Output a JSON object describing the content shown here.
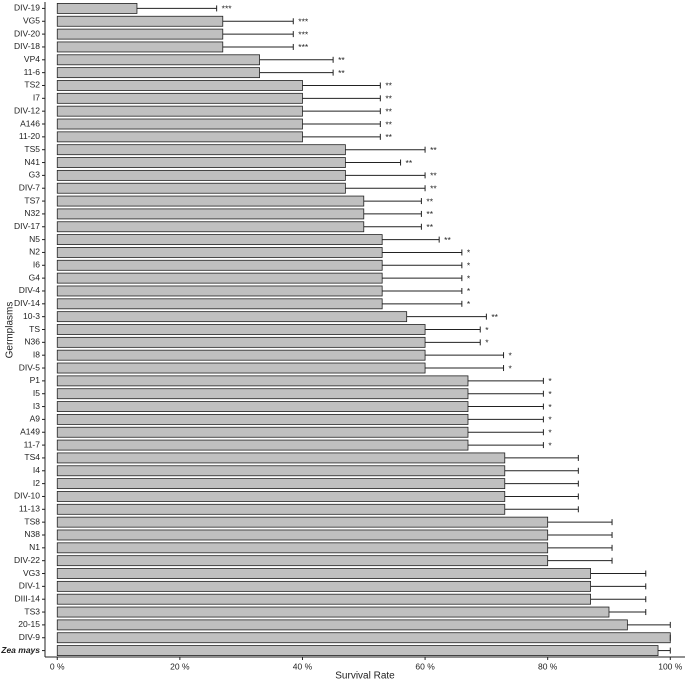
{
  "chart_data": {
    "type": "bar",
    "orientation": "horizontal",
    "x_label": "Survival Rate",
    "y_label": "Germplasms",
    "categories": [
      "DIV-19",
      "VG5",
      "DIV-20",
      "DIV-18",
      "VP4",
      "11-6",
      "TS2",
      "I7",
      "DIV-12",
      "A146",
      "11-20",
      "TS5",
      "N41",
      "G3",
      "DIV-7",
      "TS7",
      "N32",
      "DIV-17",
      "N5",
      "N2",
      "I6",
      "G4",
      "DIV-4",
      "DIV-14",
      "10-3",
      "TS",
      "N36",
      "I8",
      "DIV-5",
      "P1",
      "I5",
      "I3",
      "A9",
      "A149",
      "11-7",
      "TS4",
      "I4",
      "I2",
      "DIV-10",
      "11-13",
      "TS8",
      "N38",
      "N1",
      "DIV-22",
      "VG3",
      "DIV-1",
      "DIII-14",
      "TS3",
      "20-15",
      "DIV-9",
      "Zea mays"
    ],
    "values": [
      13,
      27,
      27,
      27,
      33,
      33,
      40,
      40,
      40,
      40,
      40,
      47,
      47,
      47,
      47,
      50,
      50,
      50,
      53,
      53,
      53,
      53,
      53,
      53,
      57,
      60,
      60,
      60,
      60,
      67,
      67,
      67,
      67,
      67,
      67,
      73,
      73,
      73,
      73,
      73,
      80,
      80,
      80,
      80,
      87,
      87,
      87,
      90,
      93,
      100,
      98
    ],
    "errors": [
      13,
      11.5,
      11.5,
      11.5,
      12,
      12,
      12.7,
      12.7,
      12.7,
      12.7,
      12.7,
      13,
      9,
      13,
      13,
      9.4,
      9.4,
      9.4,
      9.3,
      13,
      13,
      13,
      13,
      13,
      13,
      9,
      9,
      12.8,
      12.8,
      12.3,
      12.3,
      12.3,
      12.3,
      12.3,
      12.3,
      12,
      12,
      12,
      12,
      12,
      10.5,
      10.5,
      10.5,
      10.5,
      9,
      9,
      9,
      6,
      7,
      0,
      2
    ],
    "significance": [
      "***",
      "***",
      "***",
      "***",
      "**",
      "**",
      "**",
      "**",
      "**",
      "**",
      "**",
      "**",
      "**",
      "**",
      "**",
      "**",
      "**",
      "**",
      "**",
      "*",
      "*",
      "*",
      "*",
      "*",
      "**",
      "*",
      "*",
      "*",
      "*",
      "*",
      "*",
      "*",
      "*",
      "*",
      "*",
      null,
      null,
      null,
      null,
      null,
      null,
      null,
      null,
      null,
      null,
      null,
      null,
      null,
      null,
      null,
      null
    ],
    "color": "#c0c0c0",
    "xlim": [
      -2,
      102.4
    ],
    "xticks": [
      {
        "value": 0,
        "label": "0 %"
      },
      {
        "value": 20,
        "label": "20 %"
      },
      {
        "value": 40,
        "label": "40 %"
      },
      {
        "value": 60,
        "label": "60 %"
      },
      {
        "value": 80,
        "label": "80 %"
      },
      {
        "value": 100,
        "label": "100 %"
      }
    ],
    "grid": false
  }
}
